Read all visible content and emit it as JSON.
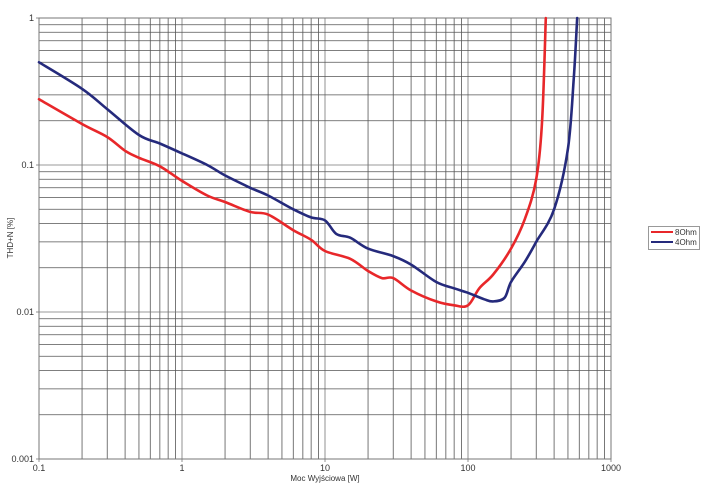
{
  "chart_data": {
    "type": "line",
    "title": "",
    "xlabel": "Moc Wyjściowa [W]",
    "ylabel": "THD+N [%]",
    "xscale": "log",
    "yscale": "log",
    "xlim": [
      0.1,
      1000
    ],
    "ylim": [
      0.001,
      1
    ],
    "x_ticks": [
      "0.1",
      "1",
      "10",
      "100",
      "1000"
    ],
    "y_ticks": [
      "1",
      "0.1",
      "0.01",
      "0.001"
    ],
    "grid": true,
    "legend_position": "right",
    "series": [
      {
        "name": "8Ohm",
        "color": "#e8272a",
        "points": [
          [
            0.1,
            0.28
          ],
          [
            0.2,
            0.19
          ],
          [
            0.3,
            0.155
          ],
          [
            0.4,
            0.125
          ],
          [
            0.5,
            0.112
          ],
          [
            0.7,
            0.098
          ],
          [
            1,
            0.078
          ],
          [
            1.5,
            0.062
          ],
          [
            2,
            0.056
          ],
          [
            3,
            0.048
          ],
          [
            4,
            0.046
          ],
          [
            6,
            0.036
          ],
          [
            8,
            0.031
          ],
          [
            10,
            0.026
          ],
          [
            15,
            0.023
          ],
          [
            20,
            0.019
          ],
          [
            25,
            0.017
          ],
          [
            30,
            0.017
          ],
          [
            40,
            0.014
          ],
          [
            60,
            0.0118
          ],
          [
            80,
            0.0111
          ],
          [
            100,
            0.0111
          ],
          [
            120,
            0.0145
          ],
          [
            150,
            0.018
          ],
          [
            200,
            0.027
          ],
          [
            250,
            0.043
          ],
          [
            300,
            0.08
          ],
          [
            330,
            0.2
          ],
          [
            350,
            1.0
          ]
        ]
      },
      {
        "name": "4Ohm",
        "color": "#252a7c",
        "points": [
          [
            0.1,
            0.5
          ],
          [
            0.2,
            0.33
          ],
          [
            0.3,
            0.24
          ],
          [
            0.5,
            0.16
          ],
          [
            0.7,
            0.14
          ],
          [
            1,
            0.12
          ],
          [
            1.5,
            0.1
          ],
          [
            2,
            0.085
          ],
          [
            3,
            0.07
          ],
          [
            4,
            0.062
          ],
          [
            6,
            0.05
          ],
          [
            8,
            0.044
          ],
          [
            10,
            0.042
          ],
          [
            12,
            0.034
          ],
          [
            15,
            0.032
          ],
          [
            20,
            0.027
          ],
          [
            30,
            0.024
          ],
          [
            40,
            0.021
          ],
          [
            60,
            0.016
          ],
          [
            80,
            0.0145
          ],
          [
            100,
            0.0135
          ],
          [
            130,
            0.0122
          ],
          [
            150,
            0.0118
          ],
          [
            180,
            0.0125
          ],
          [
            200,
            0.016
          ],
          [
            250,
            0.022
          ],
          [
            300,
            0.03
          ],
          [
            400,
            0.05
          ],
          [
            500,
            0.13
          ],
          [
            550,
            0.4
          ],
          [
            580,
            1.0
          ]
        ]
      }
    ]
  },
  "legend": {
    "items": [
      {
        "label": "8Ohm",
        "color": "#e8272a"
      },
      {
        "label": "4Ohm",
        "color": "#252a7c"
      }
    ]
  }
}
